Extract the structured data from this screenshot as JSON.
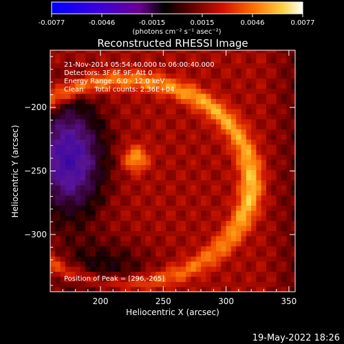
{
  "colorbar": {
    "tick_labels": [
      "-0.0077",
      "-0.0046",
      "-0.0015",
      "0.0015",
      "0.0046",
      "0.0077"
    ],
    "unit_label": "(photons cm⁻² s⁻¹ asec⁻²)",
    "range": [
      -0.0077,
      0.0077
    ]
  },
  "chart_data": {
    "type": "heatmap",
    "title": "Reconstructed RHESSI Image",
    "xlabel": "Heliocentric X (arcsec)",
    "ylabel": "Heliocentric Y (arcsec)",
    "xlim": [
      160,
      355
    ],
    "ylim": [
      -345,
      -155
    ],
    "x_ticks": [
      200,
      250,
      300,
      350
    ],
    "y_ticks": [
      -200,
      -250,
      -300
    ],
    "x_tick_labels": [
      "200",
      "250",
      "300",
      "350"
    ],
    "y_tick_labels": [
      "−200",
      "−250",
      "−300"
    ],
    "colormap": "rainbow/heat: blue-purple-red-orange-yellow-white",
    "peak": [
      296,
      -265
    ],
    "grid": false,
    "annotations": {
      "time": "21-Nov-2014 05:54:40.000 to 06:00:40.000",
      "detectors": "Detectors: 3F 6F 9F, Att 0",
      "energy": "Energy Range: 6.0 - 12.0 keV",
      "method": "Clean     Total counts: 2.36E+04",
      "peak_label": "Position of Peak = [296,-265]"
    }
  },
  "footer": {
    "date": "19-May-2022 18:26"
  }
}
